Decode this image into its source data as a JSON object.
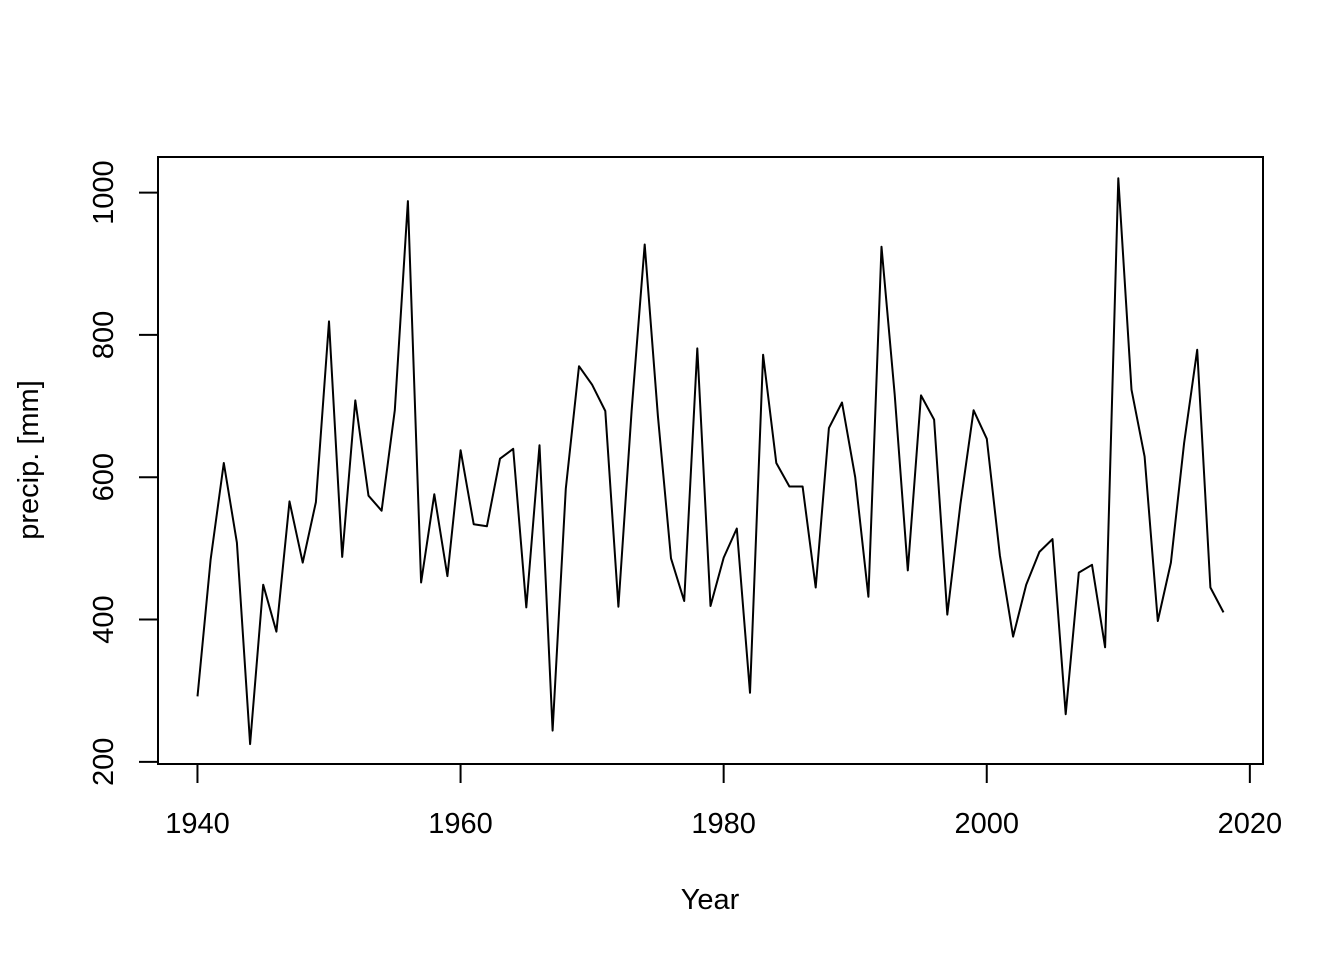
{
  "chart_data": {
    "type": "line",
    "title": "",
    "xlabel": "Year",
    "ylabel": "precip. [mm]",
    "xlim": [
      1937,
      2021
    ],
    "ylim": [
      197,
      1050
    ],
    "xticks": [
      1940,
      1960,
      1980,
      2000,
      2020
    ],
    "yticks": [
      200,
      400,
      600,
      800,
      1000
    ],
    "grid": false,
    "legend": "none",
    "line_color": "#000000",
    "series": [
      {
        "x": [
          1940,
          1941,
          1942,
          1943,
          1944,
          1945,
          1946,
          1947,
          1948,
          1949,
          1950,
          1951,
          1952,
          1953,
          1954,
          1955,
          1956,
          1957,
          1958,
          1959,
          1960,
          1961,
          1962,
          1963,
          1964,
          1965,
          1966,
          1967,
          1968,
          1969,
          1970,
          1971,
          1972,
          1973,
          1974,
          1975,
          1976,
          1977,
          1978,
          1979,
          1980,
          1981,
          1982,
          1983,
          1984,
          1985,
          1986,
          1987,
          1988,
          1989,
          1990,
          1991,
          1992,
          1993,
          1994,
          1995,
          1996,
          1997,
          1998,
          1999,
          2000,
          2001,
          2002,
          2003,
          2004,
          2005,
          2006,
          2007,
          2008,
          2009,
          2010,
          2011,
          2012,
          2013,
          2014,
          2015,
          2016,
          2017,
          2018
        ],
        "y": [
          292,
          484,
          620,
          508,
          225,
          449,
          383,
          566,
          480,
          565,
          819,
          488,
          708,
          574,
          553,
          694,
          988,
          452,
          576,
          461,
          638,
          534,
          531,
          626,
          640,
          417,
          645,
          244,
          584,
          756,
          730,
          693,
          418,
          693,
          927,
          686,
          486,
          426,
          781,
          419,
          487,
          528,
          297,
          772,
          620,
          587,
          587,
          445,
          669,
          705,
          600,
          432,
          924,
          716,
          469,
          715,
          681,
          407,
          562,
          694,
          654,
          490,
          376,
          449,
          495,
          513,
          267,
          466,
          477,
          361,
          1020,
          723,
          629,
          398,
          480,
          648,
          779,
          445,
          410
        ]
      }
    ]
  }
}
